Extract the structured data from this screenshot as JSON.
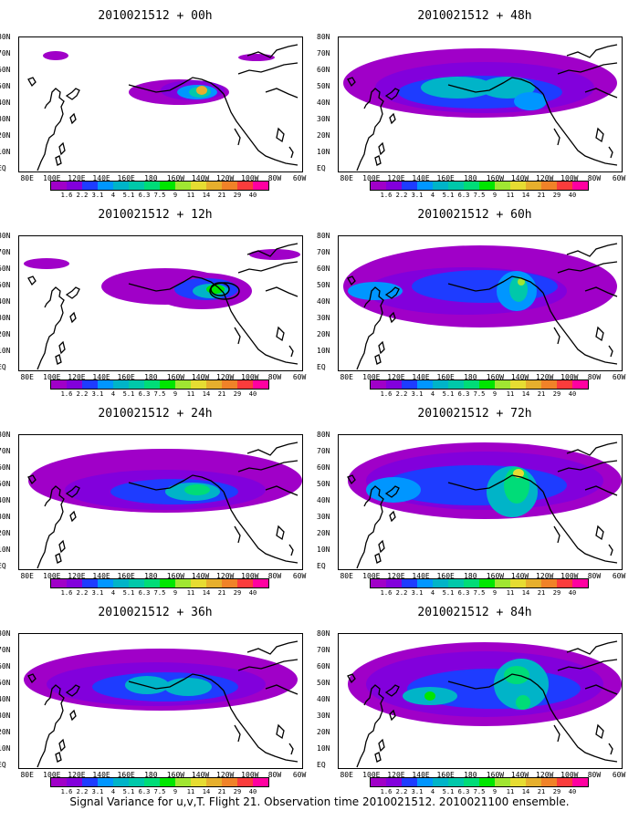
{
  "panels": [
    {
      "title": "2010021512 + 00h"
    },
    {
      "title": "2010021512 + 48h"
    },
    {
      "title": "2010021512 + 12h"
    },
    {
      "title": "2010021512 + 60h"
    },
    {
      "title": "2010021512 + 24h"
    },
    {
      "title": "2010021512 + 72h"
    },
    {
      "title": "2010021512 + 36h"
    },
    {
      "title": "2010021512 + 84h"
    }
  ],
  "lat_labels": [
    "80N",
    "70N",
    "60N",
    "50N",
    "40N",
    "30N",
    "20N",
    "10N",
    "EQ"
  ],
  "lon_labels": [
    "80E",
    "100E",
    "120E",
    "140E",
    "160E",
    "180",
    "160W",
    "140W",
    "120W",
    "100W",
    "80W",
    "60W"
  ],
  "colorbar": {
    "labels": [
      "1.6",
      "2.2",
      "3.1",
      "4",
      "5.1",
      "6.3",
      "7.5",
      "9",
      "11",
      "14",
      "21",
      "29",
      "40"
    ],
    "colors": [
      "#a000c8",
      "#8200dc",
      "#1e3cff",
      "#0096ff",
      "#00b4c8",
      "#00c8aa",
      "#00dc78",
      "#00e600",
      "#a0e632",
      "#e6dc32",
      "#e6af2d",
      "#f08228",
      "#fa3c3c",
      "#ff00a0"
    ]
  },
  "caption": "Signal Variance for u,v,T. Flight 21. Observation time 2010021512. 2010021100 ensemble."
}
